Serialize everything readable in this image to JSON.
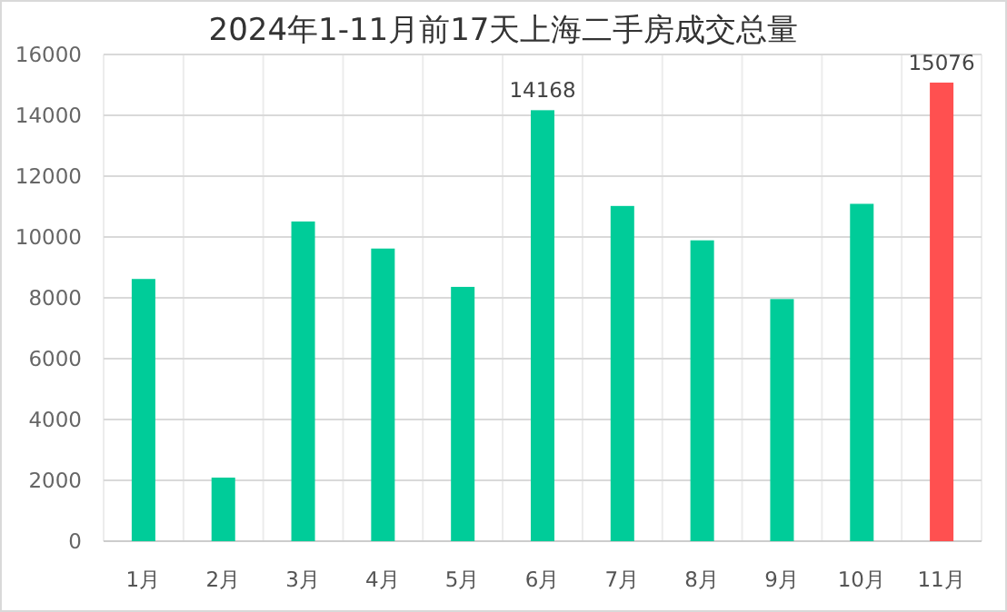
{
  "chart_data": {
    "type": "bar",
    "title": "2024年1-11月前17天上海二手房成交总量",
    "categories": [
      "1月",
      "2月",
      "3月",
      "4月",
      "5月",
      "6月",
      "7月",
      "8月",
      "9月",
      "10月",
      "11月"
    ],
    "values": [
      8620,
      2090,
      10510,
      9620,
      8360,
      14168,
      11020,
      9890,
      7960,
      11090,
      15076
    ],
    "colors": [
      "#00cc99",
      "#00cc99",
      "#00cc99",
      "#00cc99",
      "#00cc99",
      "#00cc99",
      "#00cc99",
      "#00cc99",
      "#00cc99",
      "#00cc99",
      "#ff5050"
    ],
    "value_labels": [
      null,
      null,
      null,
      null,
      null,
      "14168",
      null,
      null,
      null,
      null,
      "15076"
    ],
    "ylim": [
      0,
      16000
    ],
    "yticks": [
      0,
      2000,
      4000,
      6000,
      8000,
      10000,
      12000,
      14000,
      16000
    ],
    "grid": true
  }
}
